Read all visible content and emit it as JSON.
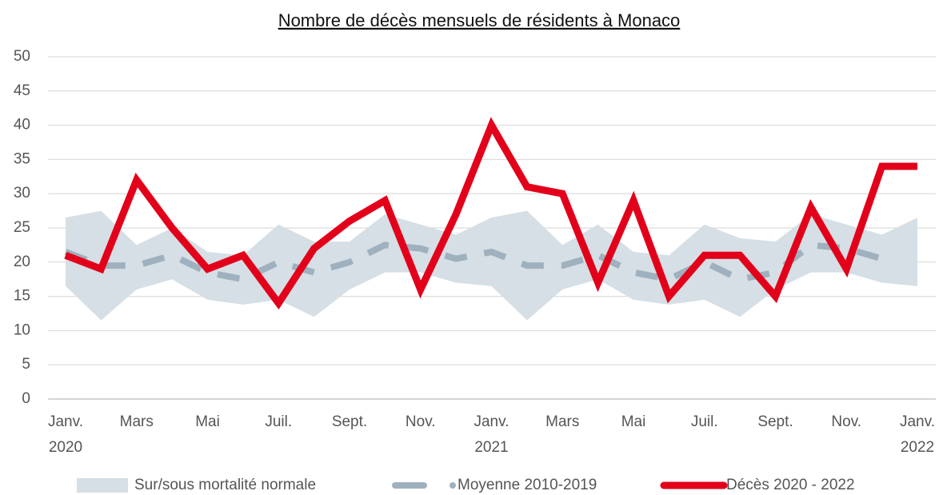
{
  "chart_data": {
    "type": "line",
    "title": "Nombre de décès mensuels de résidents à Monaco",
    "categories": [
      "Janv. 2020",
      null,
      "Mars",
      null,
      "Mai",
      null,
      "Juil.",
      null,
      "Sept.",
      null,
      "Nov.",
      null,
      "Janv. 2021",
      null,
      "Mars",
      null,
      "Mai",
      null,
      "Juil.",
      null,
      "Sept.",
      null,
      "Nov.",
      null,
      "Janv. 2022"
    ],
    "band": {
      "name": "Sur/sous mortalité normale",
      "color": "#d5dfe5",
      "upper": [
        26.5,
        27.5,
        22.5,
        25,
        21.5,
        21,
        25.5,
        23,
        23,
        27,
        25.5,
        24,
        26.5,
        27.5,
        22.5,
        25.5,
        21.5,
        21,
        25.5,
        23.5,
        23,
        27,
        25.5,
        24,
        26.5
      ],
      "lower": [
        16.5,
        11.5,
        16,
        17.5,
        14.5,
        13.8,
        14.5,
        12,
        16,
        18.5,
        18.5,
        17,
        16.5,
        11.5,
        16,
        17.5,
        14.5,
        13.8,
        14.5,
        12,
        16,
        18.5,
        18.5,
        17,
        16.5
      ]
    },
    "series": [
      {
        "name": "Moyenne 2010-2019",
        "color": "#9fb1be",
        "dashed": true,
        "values": [
          21.5,
          19.5,
          19.5,
          21,
          18.5,
          17.5,
          20,
          18.5,
          20,
          22.5,
          22,
          20.5,
          21.5,
          19.5,
          19.5,
          21,
          18.5,
          17.5,
          20,
          17.5,
          18.5,
          22.5,
          22,
          20.5,
          null
        ]
      },
      {
        "name": "Décès 2020 - 2022",
        "color": "#e2001a",
        "dashed": false,
        "values": [
          21,
          19,
          32,
          25,
          19,
          21,
          14,
          22,
          26,
          29,
          16,
          27,
          40,
          31,
          30,
          17,
          29,
          15,
          21,
          21,
          15,
          28,
          19,
          34,
          34
        ]
      }
    ],
    "ylim": [
      0,
      50
    ],
    "yticks": [
      0,
      5,
      10,
      15,
      20,
      25,
      30,
      35,
      40,
      45,
      50
    ],
    "grid": true
  }
}
